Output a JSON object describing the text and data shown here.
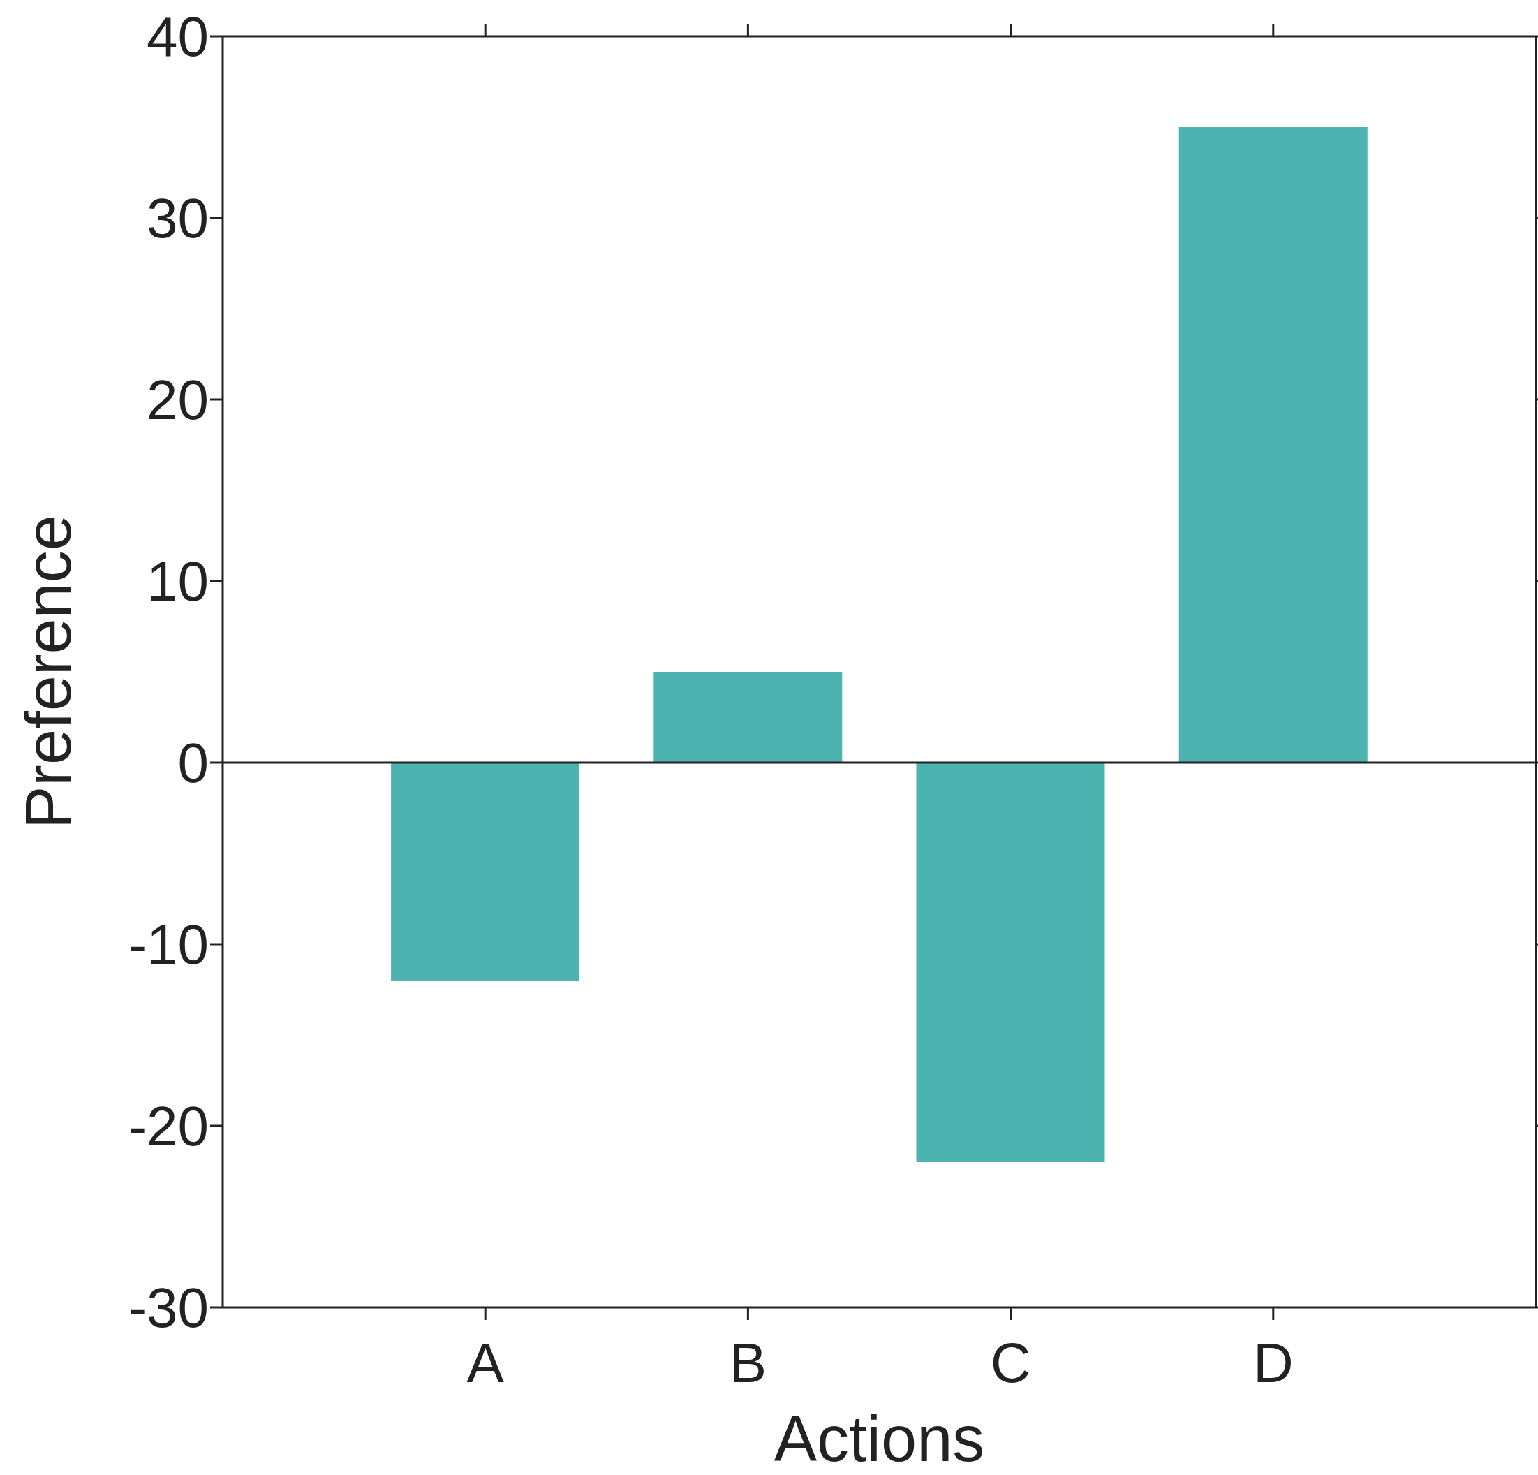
{
  "chart_data": {
    "type": "bar",
    "xlabel": "Actions",
    "ylabel": "Preference",
    "categories": [
      "A",
      "B",
      "C",
      "D"
    ],
    "values": [
      -12,
      5,
      -22,
      35
    ],
    "color": "#4db3b1",
    "ylim": [
      -30,
      40
    ],
    "yticks": [
      -30,
      -20,
      -10,
      0,
      10,
      20,
      30,
      40
    ],
    "ref_lines": [
      {
        "axis": "y",
        "value": 0,
        "color": "#222222"
      }
    ],
    "grid": false,
    "legend": false
  }
}
